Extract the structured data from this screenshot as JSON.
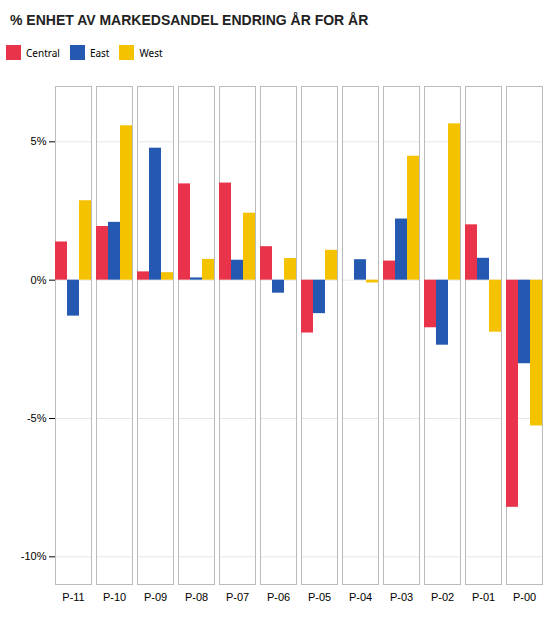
{
  "chart_data": {
    "type": "bar",
    "title": "% ENHET AV MARKEDSANDEL ENDRING ÅR FOR ÅR",
    "categories": [
      "P-11",
      "P-10",
      "P-09",
      "P-08",
      "P-07",
      "P-06",
      "P-05",
      "P-04",
      "P-03",
      "P-02",
      "P-01",
      "P-00"
    ],
    "series": [
      {
        "name": "Central",
        "color": "#E8334A",
        "values": [
          1.38,
          1.94,
          0.3,
          3.48,
          3.51,
          1.21,
          -1.91,
          -0.0,
          0.69,
          -1.72,
          2.0,
          -8.21
        ]
      },
      {
        "name": "East",
        "color": "#2558B0",
        "values": [
          -1.3,
          2.09,
          4.77,
          0.08,
          0.72,
          -0.47,
          -1.21,
          0.74,
          2.21,
          -2.35,
          0.79,
          -3.02
        ]
      },
      {
        "name": "West",
        "color": "#F5C200",
        "values": [
          2.87,
          5.58,
          0.27,
          0.75,
          2.42,
          0.78,
          1.08,
          -0.1,
          4.48,
          5.65,
          -1.88,
          -5.27
        ]
      }
    ],
    "ylim": [
      -11,
      7
    ],
    "yticks": [
      {
        "value": -10,
        "label": "-10%"
      },
      {
        "value": -5,
        "label": "-5%"
      },
      {
        "value": 0,
        "label": "0%"
      },
      {
        "value": 5,
        "label": "5%"
      }
    ],
    "grid": true,
    "legend": "top left"
  }
}
